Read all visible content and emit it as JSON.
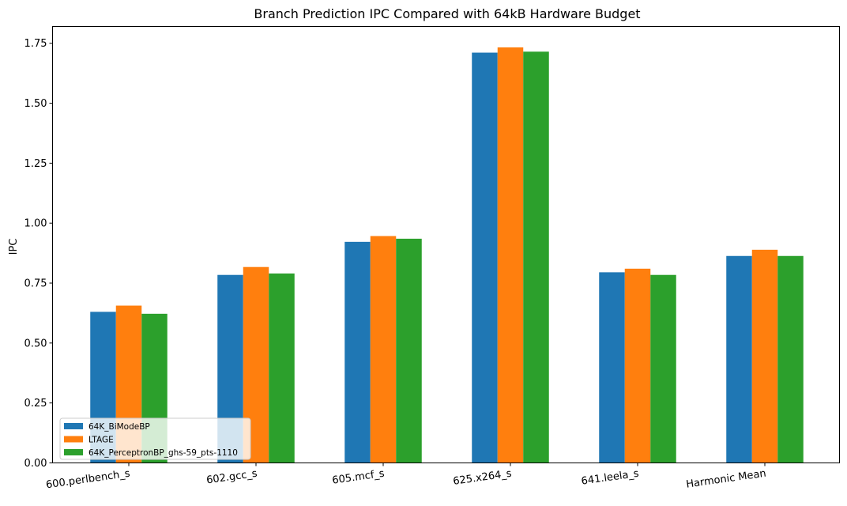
{
  "chart_data": {
    "type": "bar",
    "title": "Branch Prediction IPC Compared with 64kB Hardware Budget",
    "xlabel": "",
    "ylabel": "IPC",
    "ylim": [
      0,
      1.82
    ],
    "yticks": [
      "0.00",
      "0.25",
      "0.50",
      "0.75",
      "1.00",
      "1.25",
      "1.50",
      "1.75"
    ],
    "categories": [
      "600.perlbench_s",
      "602.gcc_s",
      "605.mcf_s",
      "625.x264_s",
      "641.leela_s",
      "Harmonic Mean"
    ],
    "series": [
      {
        "name": "64K_BiModeBP",
        "color": "#1f77b4",
        "values": [
          0.63,
          0.784,
          0.922,
          1.711,
          0.795,
          0.863
        ]
      },
      {
        "name": "LTAGE",
        "color": "#ff7f0e",
        "values": [
          0.656,
          0.817,
          0.946,
          1.733,
          0.81,
          0.889
        ]
      },
      {
        "name": "64K_PerceptronBP_ghs-59_pts-1110",
        "color": "#2ca02c",
        "values": [
          0.622,
          0.79,
          0.935,
          1.715,
          0.784,
          0.863
        ]
      }
    ],
    "grid": false,
    "legend_position": "lower-left"
  }
}
